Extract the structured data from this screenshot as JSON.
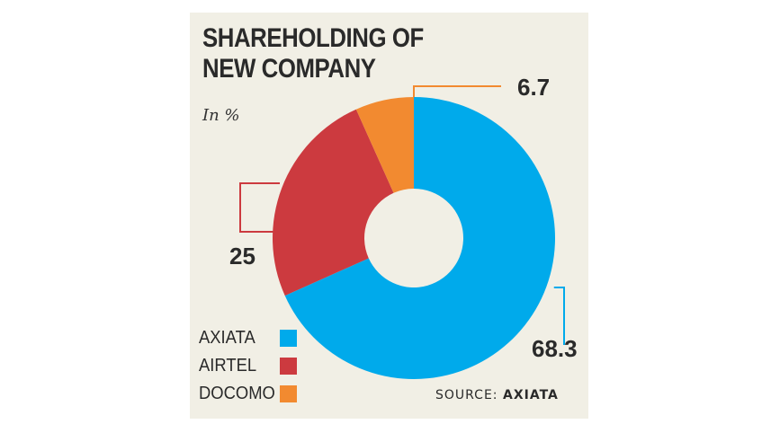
{
  "chart_data": {
    "type": "pie",
    "title": "SHAREHOLDING OF NEW COMPANY",
    "subtitle": "In %",
    "categories": [
      "AXIATA",
      "AIRTEL",
      "DOCOMO"
    ],
    "values": [
      68.3,
      25,
      6.7
    ],
    "value_labels": [
      "68.3",
      "25",
      "6.7"
    ],
    "colors": [
      "#00aaeb",
      "#cc3a3f",
      "#f28a30"
    ],
    "legend_position": "bottom-left",
    "source_prefix": "SOURCE:",
    "source_name": "AXIATA"
  }
}
